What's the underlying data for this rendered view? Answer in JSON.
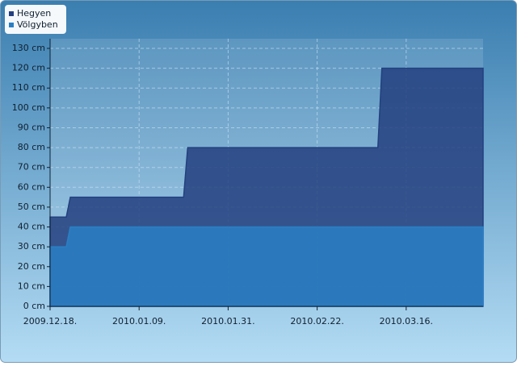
{
  "chart_data": {
    "type": "area",
    "x": [
      "2009.12.18",
      "2009.12.22",
      "2009.12.23",
      "2010.01.20",
      "2010.01.21",
      "2010.03.09",
      "2010.03.10",
      "2010.04.04"
    ],
    "series": [
      {
        "name": "Hegyen",
        "color": "#23407f",
        "values": [
          45,
          45,
          55,
          55,
          80,
          80,
          120,
          120
        ]
      },
      {
        "name": "Völgyben",
        "color": "#2a7fc4",
        "values": [
          30,
          30,
          40,
          40,
          40,
          40,
          40,
          40
        ]
      }
    ],
    "xlim": [
      "2009.12.18",
      "2010.04.04"
    ],
    "xticks": [
      {
        "value": "2009.12.18",
        "label": "2009.12.18."
      },
      {
        "value": "2010.01.09",
        "label": "2010.01.09."
      },
      {
        "value": "2010.01.31",
        "label": "2010.01.31."
      },
      {
        "value": "2010.02.22",
        "label": "2010.02.22."
      },
      {
        "value": "2010.03.16",
        "label": "2010.03.16."
      }
    ],
    "ylim": [
      0,
      130
    ],
    "yticks": [
      {
        "value": 0,
        "label": "0 cm"
      },
      {
        "value": 10,
        "label": "10 cm"
      },
      {
        "value": 20,
        "label": "20 cm"
      },
      {
        "value": 30,
        "label": "30 cm"
      },
      {
        "value": 40,
        "label": "40 cm"
      },
      {
        "value": 50,
        "label": "50 cm"
      },
      {
        "value": 60,
        "label": "60 cm"
      },
      {
        "value": 70,
        "label": "70 cm"
      },
      {
        "value": 80,
        "label": "80 cm"
      },
      {
        "value": 90,
        "label": "90 cm"
      },
      {
        "value": 100,
        "label": "100 cm"
      },
      {
        "value": 110,
        "label": "110 cm"
      },
      {
        "value": 120,
        "label": "120 cm"
      },
      {
        "value": 130,
        "label": "130 cm"
      }
    ],
    "grid": true,
    "legend": "top-left"
  }
}
